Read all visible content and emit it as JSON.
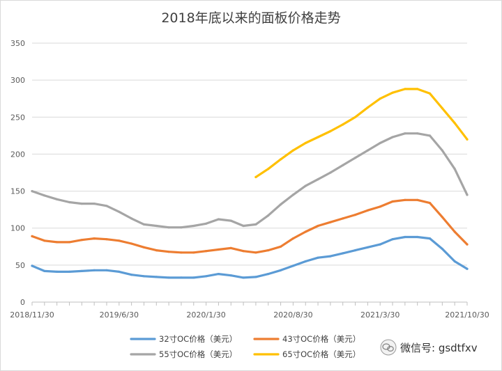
{
  "chart_data": {
    "type": "line",
    "title": "2018年底以来的面板价格走势",
    "xlabel": "",
    "ylabel": "",
    "ylim": [
      0,
      350
    ],
    "yticks": [
      0,
      50,
      100,
      150,
      200,
      250,
      300,
      350
    ],
    "grid": true,
    "legend_position": "bottom",
    "x_tick_labels": [
      "2018/11/30",
      "2019/6/30",
      "2020/1/30",
      "2020/8/30",
      "2021/3/30",
      "2021/10/30"
    ],
    "x": [
      "2018/11",
      "2018/12",
      "2019/1",
      "2019/2",
      "2019/3",
      "2019/4",
      "2019/5",
      "2019/6",
      "2019/7",
      "2019/8",
      "2019/9",
      "2019/10",
      "2019/11",
      "2019/12",
      "2020/1",
      "2020/2",
      "2020/3",
      "2020/4",
      "2020/5",
      "2020/6",
      "2020/7",
      "2020/8",
      "2020/9",
      "2020/10",
      "2020/11",
      "2020/12",
      "2021/1",
      "2021/2",
      "2021/3",
      "2021/4",
      "2021/5",
      "2021/6",
      "2021/7",
      "2021/8",
      "2021/9",
      "2021/10"
    ],
    "series": [
      {
        "name": "32寸OC价格（美元）",
        "color": "#5b9bd5",
        "values": [
          49,
          42,
          41,
          41,
          42,
          43,
          43,
          41,
          37,
          35,
          34,
          33,
          33,
          33,
          35,
          38,
          36,
          33,
          34,
          38,
          43,
          49,
          55,
          60,
          62,
          66,
          70,
          74,
          78,
          85,
          88,
          88,
          86,
          72,
          55,
          45
        ]
      },
      {
        "name": "43寸OC价格（美元）",
        "color": "#ed7d31",
        "values": [
          89,
          83,
          81,
          81,
          84,
          86,
          85,
          83,
          79,
          74,
          70,
          68,
          67,
          67,
          69,
          71,
          73,
          69,
          67,
          70,
          75,
          86,
          95,
          103,
          108,
          113,
          118,
          124,
          129,
          136,
          138,
          138,
          134,
          115,
          95,
          78
        ]
      },
      {
        "name": "55寸OC价格（美元）",
        "color": "#a5a5a5",
        "values": [
          150,
          144,
          139,
          135,
          133,
          133,
          130,
          122,
          113,
          105,
          103,
          101,
          101,
          103,
          106,
          112,
          110,
          103,
          105,
          117,
          132,
          145,
          157,
          166,
          175,
          185,
          195,
          205,
          215,
          223,
          228,
          228,
          225,
          205,
          180,
          145
        ]
      },
      {
        "name": "65寸OC价格（美元）",
        "color": "#ffc000",
        "values": [
          null,
          null,
          null,
          null,
          null,
          null,
          null,
          null,
          null,
          null,
          null,
          null,
          null,
          null,
          null,
          null,
          null,
          null,
          169,
          180,
          193,
          205,
          215,
          223,
          231,
          240,
          250,
          263,
          275,
          283,
          288,
          288,
          282,
          262,
          242,
          220
        ]
      }
    ]
  },
  "watermark": {
    "text": "微信号: gsdtfxv",
    "icon": "wechat-icon"
  }
}
